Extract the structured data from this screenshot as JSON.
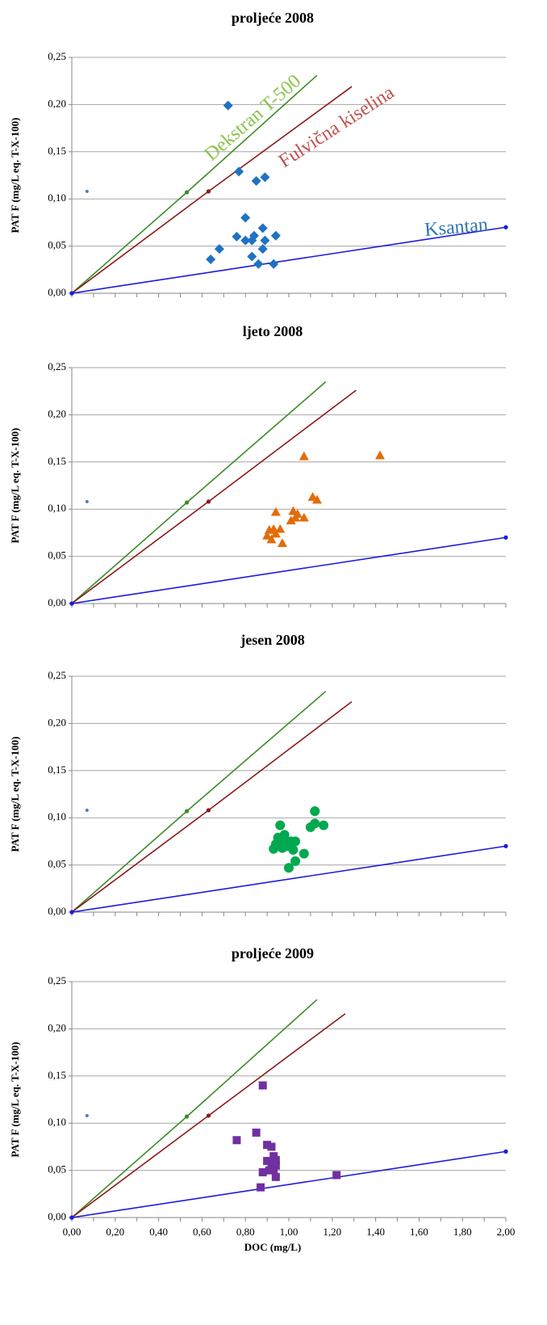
{
  "chart_data": [
    {
      "type": "scatter",
      "title": "proljeće 2008",
      "ylabel": "PAT F (mg/L eq. T-X-100)",
      "xlabel": "",
      "xlim": [
        0,
        2
      ],
      "ylim": [
        0,
        0.25
      ],
      "y_ticks": [
        "0,00",
        "0,05",
        "0,10",
        "0,15",
        "0,20",
        "0,25"
      ],
      "x_ticks": [],
      "grid": "horizontal",
      "reference_lines": [
        {
          "name": "Dekstran T-500",
          "color": "#3c8c28",
          "x": [
            0,
            0.53,
            1.13
          ],
          "y": [
            0,
            0.107,
            0.231
          ]
        },
        {
          "name": "Fulvična kiselina",
          "color": "#8b1a1a",
          "x": [
            0,
            0.63,
            1.29
          ],
          "y": [
            0,
            0.108,
            0.219
          ]
        },
        {
          "name": "Ksantan",
          "color": "#1a1ae0",
          "x": [
            0,
            2.0
          ],
          "y": [
            0,
            0.07
          ]
        }
      ],
      "annotations": [
        {
          "text": "Dekstran T-500",
          "color": "#8bc34a"
        },
        {
          "text": "Fulvična kiselina",
          "color": "#c0504d"
        },
        {
          "text": "Ksantan",
          "color": "#2e75b6"
        }
      ],
      "stray_points": [
        {
          "x": 0.07,
          "y": 0.108,
          "color": "#4a7fc1"
        }
      ],
      "series": [
        {
          "marker": "diamond",
          "color": "#1f72c4",
          "points": [
            [
              0.72,
              0.199
            ],
            [
              0.77,
              0.129
            ],
            [
              0.85,
              0.119
            ],
            [
              0.89,
              0.123
            ],
            [
              0.8,
              0.08
            ],
            [
              0.88,
              0.069
            ],
            [
              0.76,
              0.06
            ],
            [
              0.8,
              0.056
            ],
            [
              0.83,
              0.056
            ],
            [
              0.84,
              0.061
            ],
            [
              0.89,
              0.056
            ],
            [
              0.94,
              0.061
            ],
            [
              0.68,
              0.047
            ],
            [
              0.88,
              0.047
            ],
            [
              0.64,
              0.036
            ],
            [
              0.83,
              0.039
            ],
            [
              0.86,
              0.031
            ],
            [
              0.93,
              0.031
            ]
          ]
        }
      ]
    },
    {
      "type": "scatter",
      "title": "ljeto 2008",
      "ylabel": "PAT F (mg/L eq. T-X-100)",
      "xlabel": "",
      "xlim": [
        0,
        2
      ],
      "ylim": [
        0,
        0.25
      ],
      "y_ticks": [
        "0,00",
        "0,05",
        "0,10",
        "0,15",
        "0,20",
        "0,25"
      ],
      "x_ticks": [],
      "grid": "horizontal",
      "reference_lines": [
        {
          "name": "Dekstran T-500",
          "color": "#3c8c28",
          "x": [
            0,
            0.53,
            1.17
          ],
          "y": [
            0,
            0.107,
            0.235
          ]
        },
        {
          "name": "Fulvična kiselina",
          "color": "#8b1a1a",
          "x": [
            0,
            0.63,
            1.31
          ],
          "y": [
            0,
            0.108,
            0.226
          ]
        },
        {
          "name": "Ksantan",
          "color": "#1a1ae0",
          "x": [
            0,
            2.0
          ],
          "y": [
            0,
            0.07
          ]
        }
      ],
      "annotations": [],
      "stray_points": [
        {
          "x": 0.07,
          "y": 0.108,
          "color": "#4a7fc1"
        }
      ],
      "series": [
        {
          "marker": "triangle",
          "color": "#e36c09",
          "points": [
            [
              1.07,
              0.156
            ],
            [
              1.42,
              0.157
            ],
            [
              1.11,
              0.113
            ],
            [
              1.13,
              0.11
            ],
            [
              1.02,
              0.098
            ],
            [
              1.04,
              0.095
            ],
            [
              0.94,
              0.097
            ],
            [
              1.01,
              0.088
            ],
            [
              1.03,
              0.091
            ],
            [
              1.07,
              0.091
            ],
            [
              0.91,
              0.078
            ],
            [
              0.93,
              0.079
            ],
            [
              0.96,
              0.079
            ],
            [
              0.9,
              0.072
            ],
            [
              0.94,
              0.074
            ],
            [
              0.92,
              0.068
            ],
            [
              0.97,
              0.064
            ]
          ]
        }
      ]
    },
    {
      "type": "scatter",
      "title": "jesen 2008",
      "ylabel": "PAT F (mg/L eq. T-X-100)",
      "xlabel": "",
      "xlim": [
        0,
        2
      ],
      "ylim": [
        0,
        0.25
      ],
      "y_ticks": [
        "0,00",
        "0,05",
        "0,10",
        "0,15",
        "0,20",
        "0,25"
      ],
      "x_ticks": [],
      "grid": "horizontal",
      "reference_lines": [
        {
          "name": "Dekstran T-500",
          "color": "#3c8c28",
          "x": [
            0,
            0.53,
            1.17
          ],
          "y": [
            0,
            0.107,
            0.234
          ]
        },
        {
          "name": "Fulvična kiselina",
          "color": "#8b1a1a",
          "x": [
            0,
            0.63,
            1.29
          ],
          "y": [
            0,
            0.108,
            0.223
          ]
        },
        {
          "name": "Ksantan",
          "color": "#1a1ae0",
          "x": [
            0,
            2.0
          ],
          "y": [
            0,
            0.07
          ]
        }
      ],
      "annotations": [],
      "stray_points": [
        {
          "x": 0.07,
          "y": 0.108,
          "color": "#4a7fc1"
        }
      ],
      "series": [
        {
          "marker": "circle",
          "color": "#00a94f",
          "points": [
            [
              1.12,
              0.107
            ],
            [
              1.1,
              0.09
            ],
            [
              1.12,
              0.094
            ],
            [
              1.16,
              0.092
            ],
            [
              0.96,
              0.092
            ],
            [
              0.95,
              0.079
            ],
            [
              0.98,
              0.082
            ],
            [
              0.99,
              0.074
            ],
            [
              1.01,
              0.075
            ],
            [
              1.03,
              0.075
            ],
            [
              0.94,
              0.072
            ],
            [
              0.96,
              0.073
            ],
            [
              0.97,
              0.068
            ],
            [
              0.99,
              0.07
            ],
            [
              0.93,
              0.067
            ],
            [
              1.02,
              0.066
            ],
            [
              1.07,
              0.062
            ],
            [
              1.03,
              0.054
            ],
            [
              1.0,
              0.047
            ]
          ]
        }
      ]
    },
    {
      "type": "scatter",
      "title": "proljeće 2009",
      "ylabel": "PAT F (mg/L eq. T-X-100)",
      "xlabel": "DOC (mg/L)",
      "xlim": [
        0,
        2
      ],
      "ylim": [
        0,
        0.25
      ],
      "y_ticks": [
        "0,00",
        "0,05",
        "0,10",
        "0,15",
        "0,20",
        "0,25"
      ],
      "x_ticks": [
        "0,00",
        "0,20",
        "0,40",
        "0,60",
        "0,80",
        "1,00",
        "1,20",
        "1,40",
        "1,60",
        "1,80",
        "2,00"
      ],
      "grid": "horizontal",
      "reference_lines": [
        {
          "name": "Dekstran T-500",
          "color": "#3c8c28",
          "x": [
            0,
            0.53,
            1.13
          ],
          "y": [
            0,
            0.107,
            0.231
          ]
        },
        {
          "name": "Fulvična kiselina",
          "color": "#8b1a1a",
          "x": [
            0,
            0.63,
            1.26
          ],
          "y": [
            0,
            0.108,
            0.216
          ]
        },
        {
          "name": "Ksantan",
          "color": "#1a1ae0",
          "x": [
            0,
            2.0
          ],
          "y": [
            0,
            0.07
          ]
        }
      ],
      "annotations": [],
      "stray_points": [
        {
          "x": 0.07,
          "y": 0.108,
          "color": "#4a7fc1"
        }
      ],
      "series": [
        {
          "marker": "square",
          "color": "#7030a0",
          "points": [
            [
              0.88,
              0.14
            ],
            [
              0.85,
              0.09
            ],
            [
              0.76,
              0.082
            ],
            [
              0.9,
              0.077
            ],
            [
              0.92,
              0.075
            ],
            [
              0.93,
              0.065
            ],
            [
              0.94,
              0.061
            ],
            [
              0.9,
              0.06
            ],
            [
              0.92,
              0.057
            ],
            [
              0.94,
              0.055
            ],
            [
              0.93,
              0.051
            ],
            [
              0.91,
              0.05
            ],
            [
              0.88,
              0.048
            ],
            [
              0.94,
              0.043
            ],
            [
              1.22,
              0.045
            ],
            [
              0.87,
              0.032
            ]
          ]
        }
      ]
    }
  ]
}
